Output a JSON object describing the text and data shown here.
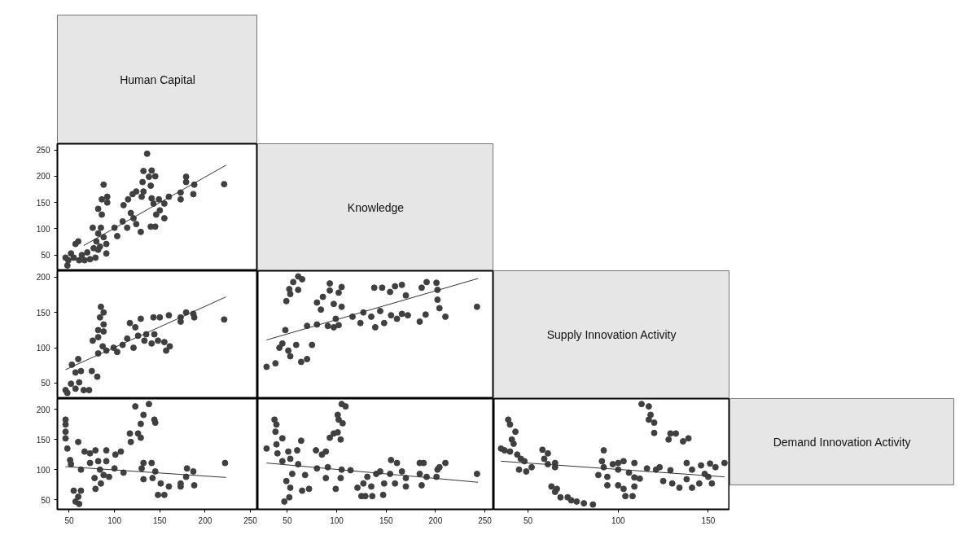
{
  "chart_data": [
    {
      "type": "other",
      "title": "Human Capital"
    },
    {
      "type": "scatter",
      "xlim": [
        37,
        258
      ],
      "ylim": [
        20,
        262
      ],
      "yticks": [
        50,
        100,
        150,
        200,
        250
      ],
      "tick_labels": "y",
      "series": [
        {
          "type": "scatter",
          "marker": "circle",
          "color": "#404040",
          "x": [
            48,
            46,
            52,
            57,
            60,
            64,
            61,
            73,
            79,
            82,
            76,
            82,
            85,
            88,
            91,
            91,
            84,
            82,
            86,
            88,
            86,
            92,
            92,
            100,
            103,
            109,
            110,
            115,
            120,
            124,
            118,
            121,
            114,
            124,
            129,
            130,
            132,
            136,
            131,
            132,
            140,
            141,
            138,
            145,
            141,
            143,
            140,
            145,
            149,
            155,
            146,
            150,
            155,
            160,
            173,
            173,
            179,
            179,
            187,
            188,
            221,
            49,
            55,
            67,
            70,
            77,
            80
          ],
          "values": [
            30,
            45,
            53,
            71,
            76,
            50,
            40,
            42,
            45,
            60,
            102,
            91,
            102,
            84,
            71,
            53,
            66,
            138,
            127,
            184,
            156,
            161,
            150,
            102,
            86,
            114,
            145,
            156,
            166,
            171,
            130,
            120,
            102,
            109,
            94,
            161,
            210,
            243,
            189,
            171,
            182,
            211,
            199,
            200,
            158,
            148,
            104,
            104,
            156,
            148,
            127,
            135,
            120,
            161,
            156,
            169,
            199,
            189,
            166,
            184,
            185,
            40,
            45,
            40,
            55,
            63,
            76
          ]
        },
        {
          "type": "line",
          "color": "#333333",
          "x": [
            66,
            223
          ],
          "values": [
            68,
            221
          ]
        }
      ]
    },
    {
      "type": "other",
      "title": "Knowledge"
    },
    {
      "type": "scatter",
      "xlim": [
        37,
        258
      ],
      "ylim": [
        28,
        209
      ],
      "yticks": [
        50,
        100,
        150,
        200
      ],
      "tick_labels": "y",
      "series": [
        {
          "type": "scatter",
          "marker": "circle",
          "color": "#404040",
          "x": [
            46,
            48,
            52,
            57,
            61,
            66,
            72,
            53,
            60,
            57,
            63,
            75,
            81,
            76,
            82,
            85,
            88,
            84,
            88,
            82,
            88,
            82,
            87,
            91,
            99,
            103,
            109,
            114,
            117,
            123,
            121,
            129,
            126,
            135,
            133,
            143,
            144,
            141,
            150,
            148,
            155,
            157,
            161,
            160,
            173,
            173,
            179,
            187,
            188,
            221
          ],
          "values": [
            40,
            36,
            49,
            42,
            51,
            40,
            40,
            76,
            84,
            65,
            67,
            67,
            59,
            110,
            115,
            158,
            150,
            143,
            133,
            125,
            123,
            92,
            102,
            96,
            100,
            94,
            104,
            113,
            135,
            129,
            100,
            141,
            117,
            119,
            110,
            143,
            119,
            106,
            143,
            110,
            108,
            96,
            102,
            146,
            143,
            137,
            150,
            148,
            143,
            140
          ]
        },
        {
          "type": "line",
          "color": "#333333",
          "x": [
            46,
            223
          ],
          "values": [
            69,
            172
          ]
        }
      ]
    },
    {
      "type": "scatter",
      "xlim": [
        20,
        259
      ],
      "ylim": [
        28,
        209
      ],
      "tick_labels": false,
      "series": [
        {
          "type": "scatter",
          "marker": "circle",
          "color": "#404040",
          "x": [
            29,
            38,
            42,
            48,
            45,
            51,
            53,
            59,
            64,
            70,
            75,
            49,
            53,
            56,
            61,
            65,
            61,
            52,
            70,
            80,
            91,
            97,
            102,
            80,
            86,
            84,
            93,
            93,
            97,
            102,
            105,
            105,
            99,
            116,
            124,
            127,
            135,
            139,
            138,
            146,
            144,
            148,
            154,
            159,
            166,
            155,
            161,
            170,
            166,
            172,
            184,
            186,
            191,
            201,
            202,
            202,
            190,
            204,
            210,
            242
          ],
          "values": [
            73,
            78,
            100,
            125,
            106,
            96,
            88,
            104,
            80,
            84,
            104,
            166,
            176,
            193,
            201,
            197,
            182,
            183,
            131,
            133,
            131,
            129,
            132,
            164,
            172,
            154,
            191,
            181,
            162,
            178,
            186,
            158,
            141,
            144,
            135,
            150,
            144,
            129,
            185,
            185,
            152,
            135,
            179,
            187,
            189,
            146,
            141,
            174,
            148,
            146,
            137,
            185,
            193,
            192,
            182,
            168,
            147,
            156,
            144,
            158
          ]
        },
        {
          "type": "line",
          "color": "#333333",
          "x": [
            29,
            243
          ],
          "values": [
            111,
            198
          ]
        }
      ]
    },
    {
      "type": "other",
      "title": "Supply Innovation Activity"
    },
    {
      "type": "scatter",
      "xlim": [
        37,
        258
      ],
      "ylim": [
        34,
        218
      ],
      "xticks": [
        50,
        100,
        150,
        200,
        250
      ],
      "yticks": [
        50,
        100,
        150,
        200
      ],
      "series": [
        {
          "type": "scatter",
          "marker": "circle",
          "color": "#404040",
          "x": [
            46,
            46,
            46,
            46,
            48,
            51,
            52,
            55,
            57,
            60,
            61,
            63,
            60,
            63,
            67,
            73,
            73,
            78,
            79,
            79,
            84,
            82,
            85,
            88,
            91,
            91,
            94,
            100,
            101,
            107,
            110,
            117,
            118,
            123,
            126,
            129,
            129,
            132,
            132,
            130,
            132,
            138,
            141,
            144,
            145,
            142,
            145,
            148,
            155,
            151,
            160,
            173,
            173,
            179,
            180,
            187,
            188,
            222
          ],
          "values": [
            183,
            175,
            163,
            152,
            135,
            116,
            109,
            65,
            47,
            55,
            43,
            65,
            146,
            100,
            130,
            127,
            111,
            86,
            68,
            132,
            100,
            114,
            77,
            91,
            132,
            114,
            88,
            102,
            125,
            130,
            95,
            160,
            146,
            205,
            160,
            153,
            176,
            191,
            111,
            102,
            84,
            209,
            111,
            183,
            178,
            86,
            97,
            58,
            58,
            77,
            72,
            77,
            72,
            88,
            102,
            97,
            74,
            111
          ]
        },
        {
          "type": "line",
          "color": "#333333",
          "x": [
            46,
            223
          ],
          "values": [
            105,
            87
          ]
        }
      ]
    },
    {
      "type": "scatter",
      "xlim": [
        20,
        259
      ],
      "ylim": [
        34,
        218
      ],
      "xticks": [
        50,
        100,
        150,
        200,
        250
      ],
      "tick_labels": "x",
      "series": [
        {
          "type": "scatter",
          "marker": "circle",
          "color": "#404040",
          "x": [
            29,
            37,
            39,
            38,
            39,
            45,
            40,
            45,
            51,
            53,
            47,
            52,
            49,
            53,
            60,
            64,
            61,
            55,
            65,
            72,
            68,
            79,
            85,
            80,
            89,
            91,
            89,
            93,
            97,
            101,
            99,
            104,
            101,
            102,
            105,
            109,
            106,
            104,
            105,
            114,
            121,
            125,
            129,
            127,
            131,
            136,
            135,
            140,
            144,
            147,
            148,
            155,
            154,
            159,
            161,
            166,
            170,
            170,
            184,
            188,
            184,
            186,
            191,
            201,
            202,
            204,
            210,
            242
          ],
          "values": [
            135,
            183,
            175,
            163,
            142,
            152,
            127,
            114,
            130,
            118,
            47,
            54,
            81,
            70,
            132,
            148,
            109,
            93,
            65,
            68,
            91,
            132,
            125,
            102,
            130,
            104,
            86,
            153,
            160,
            162,
            68,
            150,
            191,
            183,
            209,
            205,
            177,
            86,
            100,
            99,
            70,
            56,
            56,
            77,
            88,
            56,
            72,
            93,
            97,
            58,
            77,
            116,
            93,
            77,
            111,
            97,
            86,
            72,
            111,
            111,
            93,
            74,
            88,
            88,
            100,
            104,
            111,
            93
          ]
        },
        {
          "type": "line",
          "color": "#333333",
          "x": [
            29,
            243
          ],
          "values": [
            111,
            79
          ]
        }
      ]
    },
    {
      "type": "scatter",
      "xlim": [
        31,
        162
      ],
      "ylim": [
        34,
        218
      ],
      "xticks": [
        50,
        100,
        150
      ],
      "tick_labels": "x",
      "series": [
        {
          "type": "scatter",
          "marker": "circle",
          "color": "#404040",
          "x": [
            35,
            37,
            39,
            40,
            43,
            41,
            42,
            40,
            44,
            46,
            48,
            45,
            49,
            52,
            58,
            59,
            61,
            61,
            65,
            65,
            63,
            66,
            65,
            68,
            72,
            74,
            77,
            81,
            86,
            89,
            92,
            91,
            92,
            94,
            94,
            97,
            100,
            100,
            100,
            103,
            104,
            108,
            109,
            103,
            109,
            106,
            109,
            112,
            113,
            117,
            118,
            117,
            120,
            120,
            116,
            121,
            123,
            125,
            128,
            129,
            132,
            129,
            130,
            134,
            136,
            139,
            138,
            138,
            141,
            141,
            145,
            146,
            148,
            151,
            150,
            152,
            154,
            159
          ],
          "values": [
            135,
            132,
            183,
            175,
            163,
            150,
            143,
            130,
            125,
            118,
            114,
            100,
            97,
            104,
            133,
            118,
            127,
            109,
            111,
            104,
            72,
            68,
            63,
            54,
            54,
            49,
            47,
            44,
            42,
            91,
            132,
            114,
            104,
            88,
            74,
            109,
            111,
            100,
            74,
            68,
            56,
            56,
            72,
            114,
            111,
            95,
            87,
            85,
            209,
            205,
            191,
            183,
            178,
            161,
            102,
            100,
            104,
            81,
            150,
            160,
            160,
            99,
            77,
            70,
            147,
            152,
            111,
            84,
            70,
            100,
            77,
            107,
            93,
            110,
            88,
            77,
            104,
            111
          ]
        },
        {
          "type": "line",
          "color": "#333333",
          "x": [
            35,
            159
          ],
          "values": [
            114,
            88
          ]
        }
      ]
    },
    {
      "type": "other",
      "title": "Demand Innovation Activity"
    }
  ]
}
